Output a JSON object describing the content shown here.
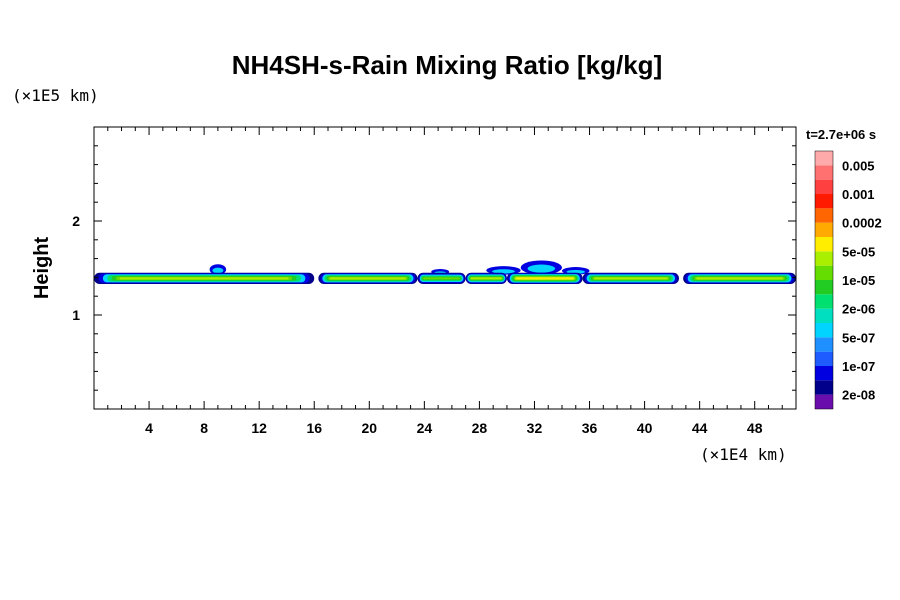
{
  "chart_data": {
    "type": "heatmap",
    "title": "NH4SH-s-Rain Mixing Ratio [kg/kg]",
    "ylabel": "Height",
    "xlabel": "",
    "x_unit_label": "(×1E4 km)",
    "y_unit_label": "(×1E5 km)",
    "time_label": "t=2.7e+06 s",
    "xlim": [
      0,
      51
    ],
    "ylim": [
      0,
      3
    ],
    "x_ticks": [
      4,
      8,
      12,
      16,
      20,
      24,
      28,
      32,
      36,
      40,
      44,
      48
    ],
    "y_ticks": [
      1,
      2
    ],
    "x_tick_labels": [
      "4",
      "8",
      "12",
      "16",
      "20",
      "24",
      "28",
      "32",
      "36",
      "40",
      "44",
      "48"
    ],
    "y_tick_labels": [
      "1",
      "2"
    ],
    "colorbar": {
      "colors": [
        "#6a0dad",
        "#00008b",
        "#0000e0",
        "#1e5cff",
        "#1e90ff",
        "#00d4ff",
        "#00e0c0",
        "#00e070",
        "#22cc22",
        "#66dd00",
        "#aaee00",
        "#ffee00",
        "#ffaa00",
        "#ff6600",
        "#ff1a00",
        "#ff4040",
        "#ff7070",
        "#ffaaaa"
      ],
      "tick_labels": [
        "2e-08",
        "1e-07",
        "5e-07",
        "2e-06",
        "1e-05",
        "5e-05",
        "0.0002",
        "0.001",
        "0.005"
      ]
    },
    "band": {
      "center_height": 1.39,
      "half_thickness": 0.06,
      "segments": [
        {
          "x": [
            0,
            16
          ],
          "peak_level": 0.62
        },
        {
          "x": [
            16.3,
            23.5
          ],
          "peak_level": 0.62
        },
        {
          "x": [
            23.5,
            27
          ],
          "peak_level": 0.5
        },
        {
          "x": [
            27,
            30
          ],
          "peak_level": 0.58
        },
        {
          "x": [
            30,
            35.5
          ],
          "peak_level": 0.72
        },
        {
          "x": [
            35.5,
            42.5
          ],
          "peak_level": 0.6
        },
        {
          "x": [
            42.8,
            51
          ],
          "peak_level": 0.62
        }
      ],
      "bumps": [
        {
          "x": [
            8.4,
            9.6
          ],
          "top": 1.54
        },
        {
          "x": [
            24.5,
            25.8
          ],
          "top": 1.49
        },
        {
          "x": [
            28.5,
            31
          ],
          "top": 1.52
        },
        {
          "x": [
            31,
            34
          ],
          "top": 1.58
        },
        {
          "x": [
            34,
            36
          ],
          "top": 1.51
        }
      ]
    }
  }
}
